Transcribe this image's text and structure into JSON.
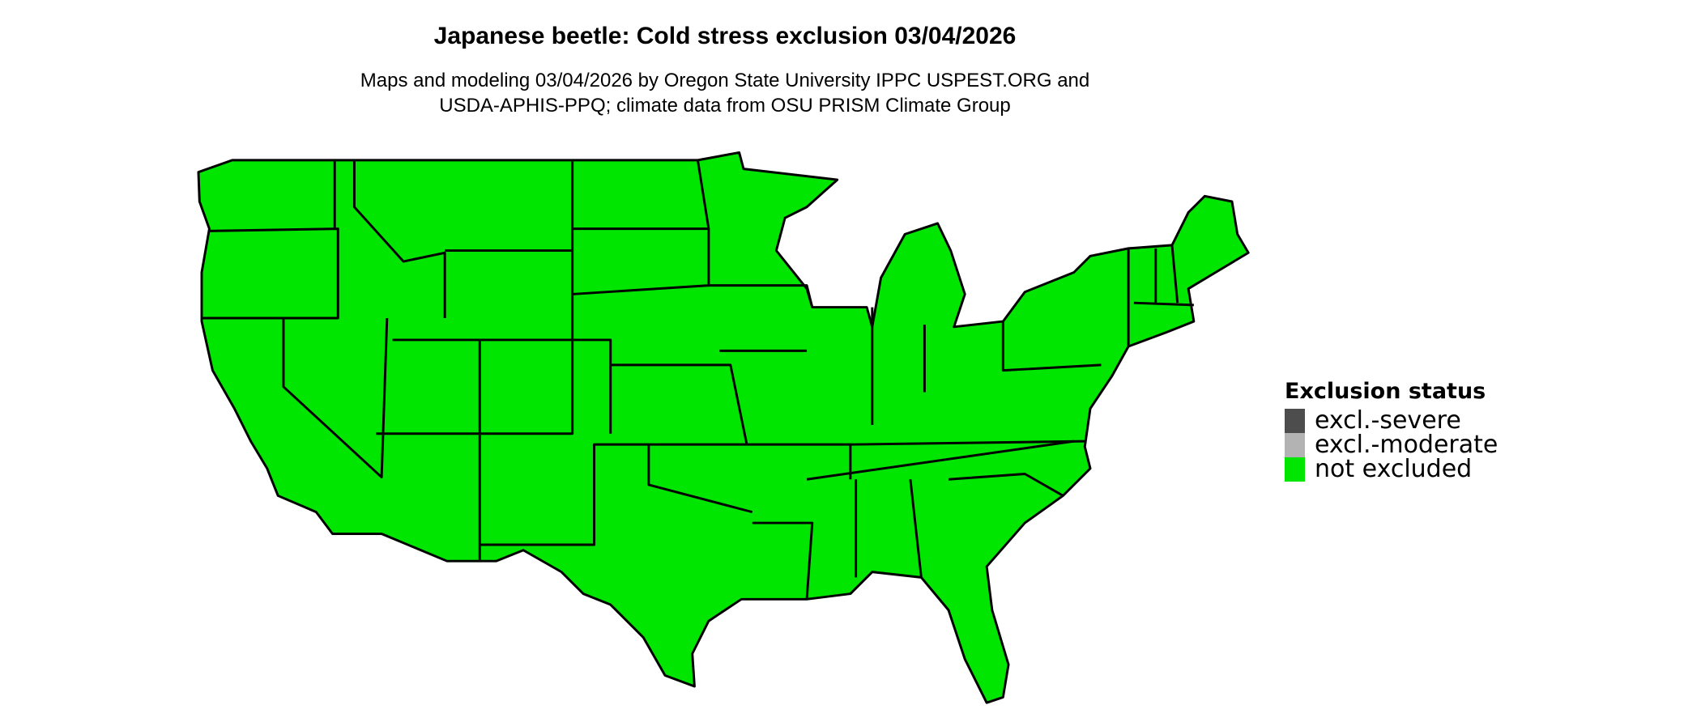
{
  "title": "Japanese beetle: Cold stress exclusion 03/04/2026",
  "subtitle_lines": [
    "Maps and modeling 03/04/2026 by Oregon State University IPPC USPEST.ORG and",
    "USDA-APHIS-PPQ; climate data from OSU PRISM Climate Group"
  ],
  "map": {
    "region": "Contiguous United States",
    "fill_status": "not excluded",
    "fill_color": "#00e600",
    "border_color": "#000000"
  },
  "legend": {
    "title": "Exclusion status",
    "items": [
      {
        "label": "excl.-severe",
        "color": "#4d4d4d"
      },
      {
        "label": "excl.-moderate",
        "color": "#b3b3b3"
      },
      {
        "label": "not excluded",
        "color": "#00e600"
      }
    ]
  }
}
